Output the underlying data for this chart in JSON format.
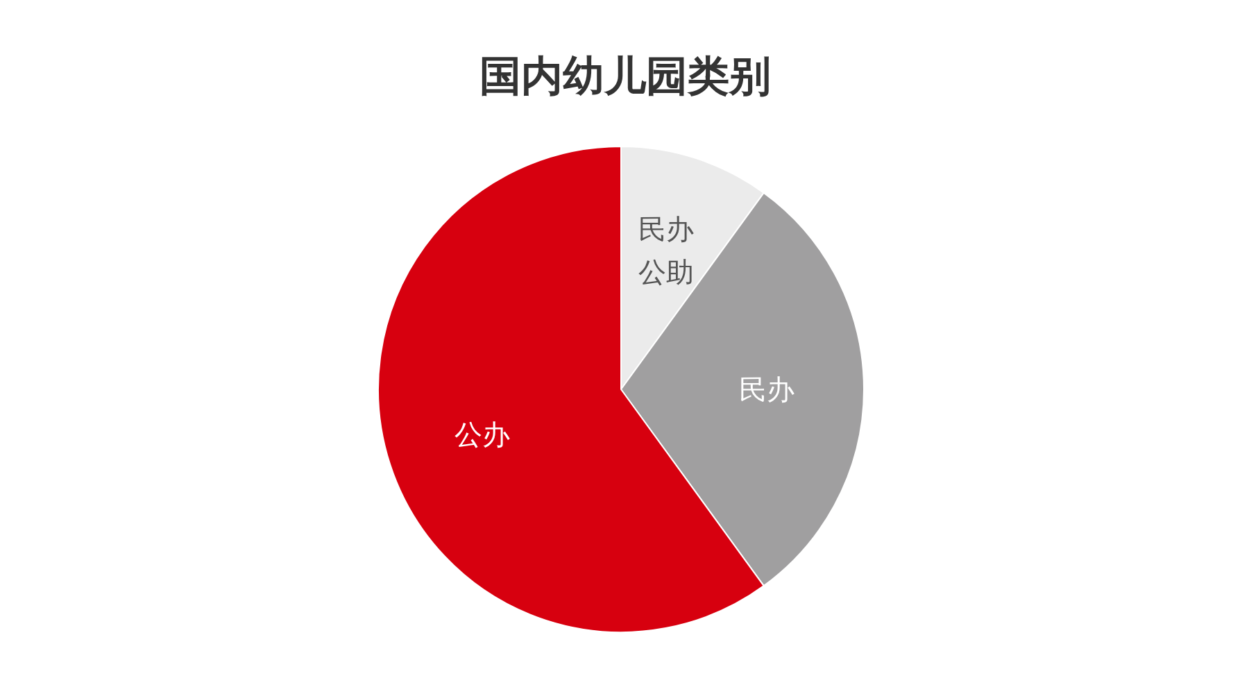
{
  "chart_data": {
    "type": "pie",
    "title": "国内幼儿园类别",
    "categories": [
      "民办公助",
      "民办",
      "公办"
    ],
    "values": [
      10,
      30,
      60
    ],
    "colors": [
      "#ebebeb",
      "#a09fa0",
      "#d7000f"
    ],
    "data_labels": false
  }
}
